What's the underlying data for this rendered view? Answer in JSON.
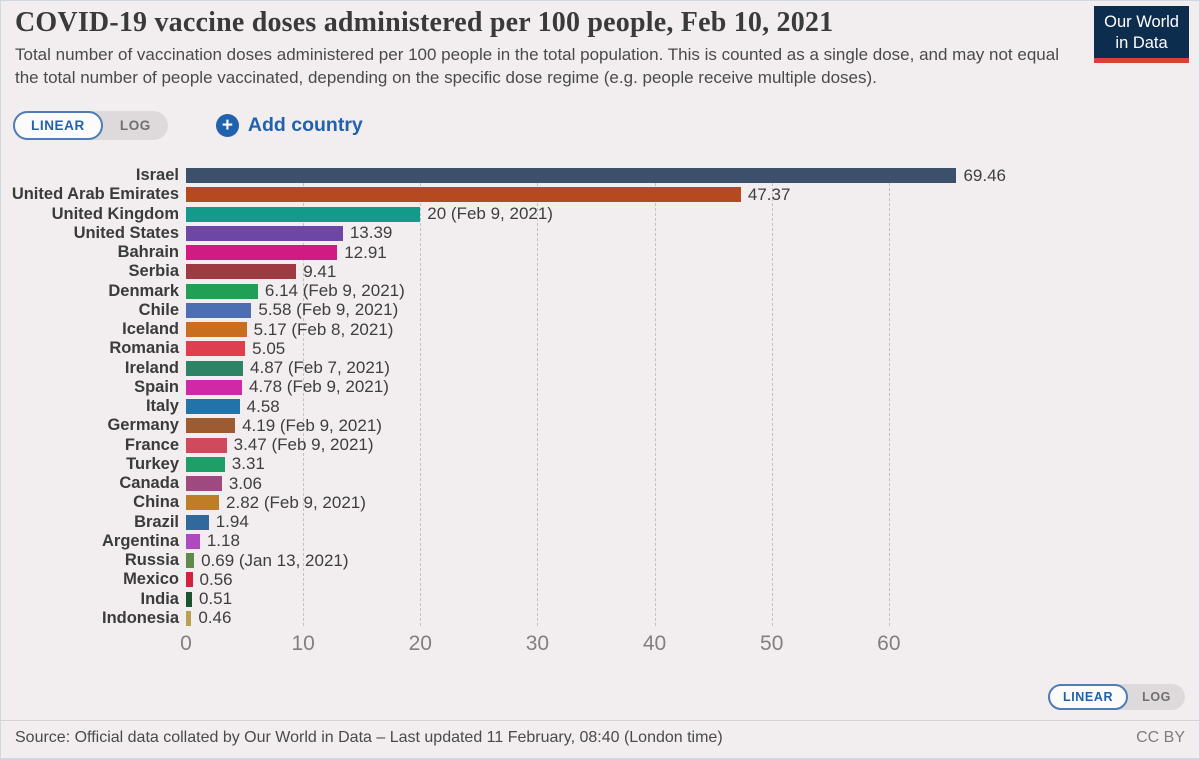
{
  "header": {
    "title": "COVID-19 vaccine doses administered per 100 people, Feb 10, 2021",
    "subtitle": "Total number of vaccination doses administered per 100 people in the total population. This is counted as a single dose, and may not equal the total number of people vaccinated, depending on the specific dose regime (e.g. people receive multiple doses).",
    "logo_text": "Our World\nin Data"
  },
  "controls": {
    "linear_label": "LINEAR",
    "log_label": "LOG",
    "add_country_label": "Add country",
    "plus_glyph": "+"
  },
  "chart_data": {
    "type": "bar",
    "orientation": "horizontal",
    "title": "COVID-19 vaccine doses administered per 100 people, Feb 10, 2021",
    "xlabel": "",
    "ylabel": "",
    "xlim": [
      0,
      70
    ],
    "x_ticks": [
      0,
      10,
      20,
      30,
      40,
      50,
      60
    ],
    "grid": "dashed-vertical",
    "categories": [
      "Israel",
      "United Arab Emirates",
      "United Kingdom",
      "United States",
      "Bahrain",
      "Serbia",
      "Denmark",
      "Chile",
      "Iceland",
      "Romania",
      "Ireland",
      "Spain",
      "Italy",
      "Germany",
      "France",
      "Turkey",
      "Canada",
      "China",
      "Brazil",
      "Argentina",
      "Russia",
      "Mexico",
      "India",
      "Indonesia"
    ],
    "values": [
      69.46,
      47.37,
      20,
      13.39,
      12.91,
      9.41,
      6.14,
      5.58,
      5.17,
      5.05,
      4.87,
      4.78,
      4.58,
      4.19,
      3.47,
      3.31,
      3.06,
      2.82,
      1.94,
      1.18,
      0.69,
      0.56,
      0.51,
      0.46
    ],
    "value_labels": [
      "69.46",
      "47.37",
      "20 (Feb 9, 2021)",
      "13.39",
      "12.91",
      "9.41",
      "6.14 (Feb 9, 2021)",
      "5.58 (Feb 9, 2021)",
      "5.17 (Feb 8, 2021)",
      "5.05",
      "4.87 (Feb 7, 2021)",
      "4.78 (Feb 9, 2021)",
      "4.58",
      "4.19 (Feb 9, 2021)",
      "3.47 (Feb 9, 2021)",
      "3.31",
      "3.06",
      "2.82 (Feb 9, 2021)",
      "1.94",
      "1.18",
      "0.69 (Jan 13, 2021)",
      "0.56",
      "0.51",
      "0.46"
    ],
    "bar_colors": [
      "#3d506b",
      "#b5491f",
      "#149a8a",
      "#6d47a5",
      "#d01c82",
      "#9e3a41",
      "#21a055",
      "#4c6fb1",
      "#c96e1f",
      "#de3e4e",
      "#2c8465",
      "#d128a7",
      "#2173a8",
      "#9e5b2f",
      "#d04a5e",
      "#1f9e67",
      "#9e4a80",
      "#be7e26",
      "#31699c",
      "#ad4abd",
      "#5f8a4c",
      "#d2223e",
      "#1d5430",
      "#b9a154"
    ]
  },
  "footer": {
    "source": "Source: Official data collated by Our World in Data – Last updated 11 February, 08:40 (London time)",
    "license": "CC BY"
  },
  "colors": {
    "accent_blue": "#2162af",
    "background": "#f2eeef",
    "logo_navy": "#0d2d4e",
    "logo_red": "#dc3e38"
  }
}
